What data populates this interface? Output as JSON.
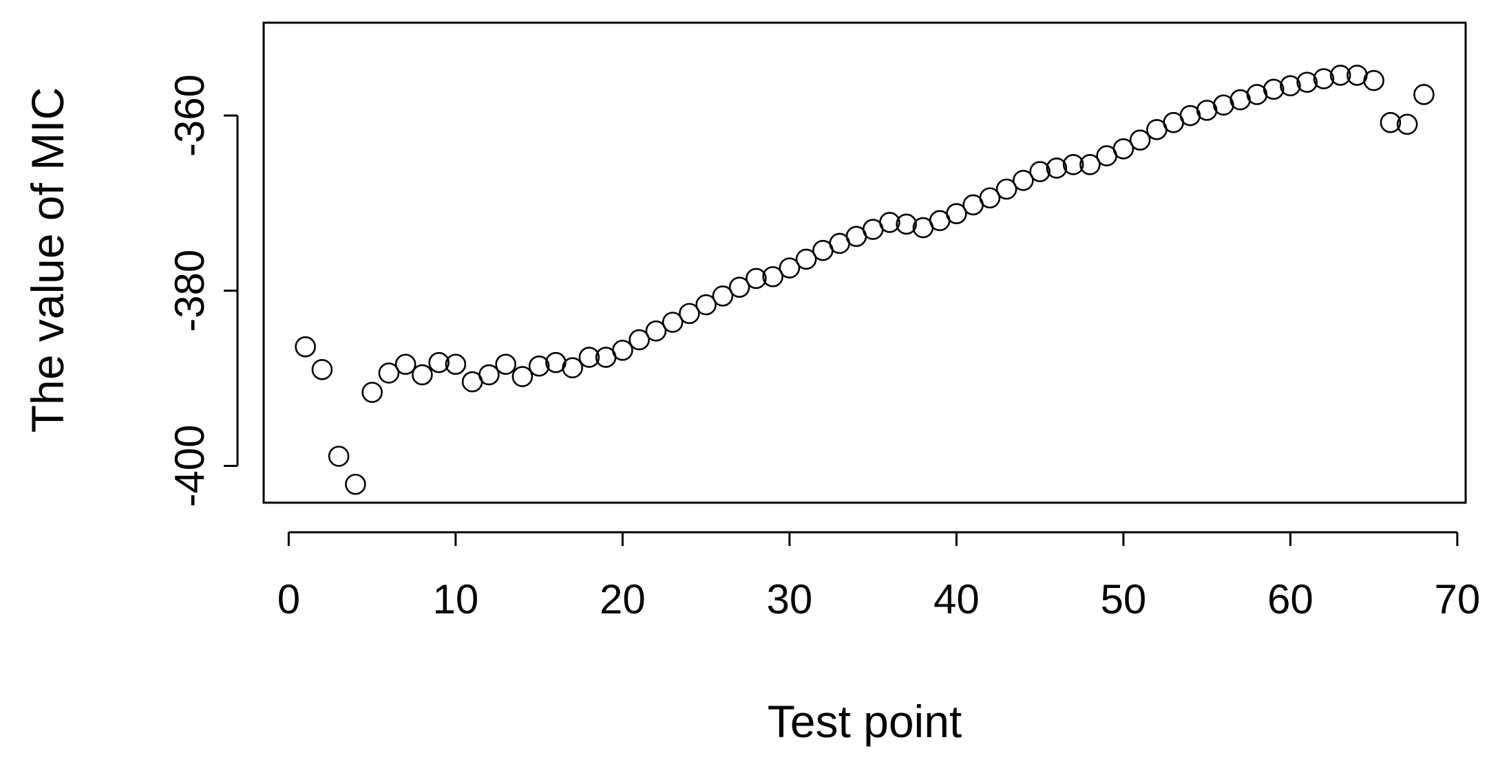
{
  "chart_data": {
    "type": "scatter",
    "title": "",
    "xlabel": "Test point",
    "ylabel": "The value of MIC",
    "xlim": [
      -1.5,
      70.5
    ],
    "ylim": [
      -404.2,
      -349.4
    ],
    "xticks": [
      0,
      10,
      20,
      30,
      40,
      50,
      60,
      70
    ],
    "yticks": [
      -400,
      -380,
      -360
    ],
    "xtick_labels": [
      "0",
      "10",
      "20",
      "30",
      "40",
      "50",
      "60",
      "70"
    ],
    "ytick_labels": [
      "-400",
      "-380",
      "-360"
    ],
    "grid": false,
    "marker": "open-circle",
    "series": [
      {
        "x": [
          1,
          2,
          3,
          4,
          5,
          6,
          7,
          8,
          9,
          10,
          11,
          12,
          13,
          14,
          15,
          16,
          17,
          18,
          19,
          20,
          21,
          22,
          23,
          24,
          25,
          26,
          27,
          28,
          29,
          30,
          31,
          32,
          33,
          34,
          35,
          36,
          37,
          38,
          39,
          40,
          41,
          42,
          43,
          44,
          45,
          46,
          47,
          48,
          49,
          50,
          51,
          52,
          53,
          54,
          55,
          56,
          57,
          58,
          59,
          60,
          61,
          62,
          63,
          64,
          65,
          66,
          67,
          68
        ],
        "values": [
          -386.4,
          -389.0,
          -398.9,
          -402.1,
          -391.6,
          -389.4,
          -388.4,
          -389.6,
          -388.2,
          -388.4,
          -390.4,
          -389.6,
          -388.4,
          -389.8,
          -388.6,
          -388.2,
          -388.8,
          -387.6,
          -387.6,
          -386.8,
          -385.6,
          -384.6,
          -383.6,
          -382.6,
          -381.6,
          -380.6,
          -379.6,
          -378.6,
          -378.4,
          -377.4,
          -376.4,
          -375.4,
          -374.6,
          -373.8,
          -373.0,
          -372.2,
          -372.4,
          -372.8,
          -372.0,
          -371.2,
          -370.2,
          -369.4,
          -368.4,
          -367.4,
          -366.4,
          -366.0,
          -365.6,
          -365.6,
          -364.6,
          -363.8,
          -362.8,
          -361.6,
          -360.8,
          -360.0,
          -359.4,
          -358.8,
          -358.2,
          -357.6,
          -357.0,
          -356.6,
          -356.2,
          -355.8,
          -355.4,
          -355.4,
          -356.0,
          -360.8,
          -361.0,
          -357.6
        ]
      }
    ]
  }
}
